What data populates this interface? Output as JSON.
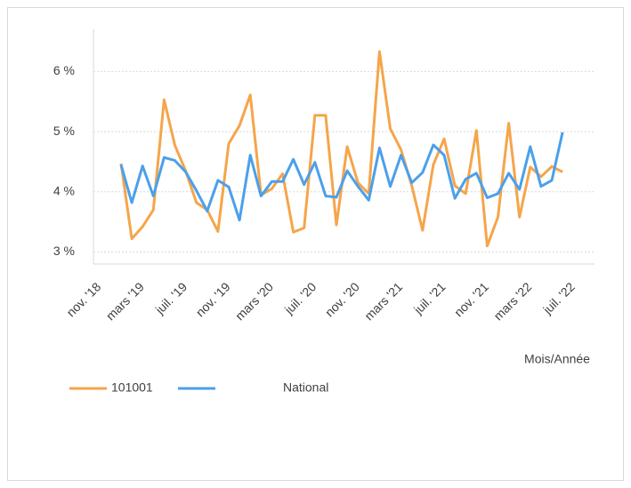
{
  "chart_data": {
    "type": "line",
    "x_axis_title": "Mois/Année",
    "categories": [
      "nov. '18",
      null,
      null,
      null,
      "mars '19",
      null,
      null,
      null,
      "juil. '19",
      null,
      null,
      null,
      "nov. '19",
      null,
      null,
      null,
      "mars '20",
      null,
      null,
      null,
      "juil. '20",
      null,
      null,
      null,
      "nov. '20",
      null,
      null,
      null,
      "mars '21",
      null,
      null,
      null,
      "juil. '21",
      null,
      null,
      null,
      "nov. '21",
      null,
      null,
      null,
      "mars '22",
      null,
      null,
      null,
      "juil. '22"
    ],
    "series": [
      {
        "name": "101001",
        "color": "#f5a54a",
        "values": [
          null,
          null,
          null,
          4.47,
          3.22,
          3.42,
          3.7,
          5.53,
          4.77,
          4.35,
          3.82,
          3.7,
          3.34,
          4.8,
          5.1,
          5.61,
          3.95,
          4.05,
          4.3,
          3.33,
          3.4,
          5.27,
          5.27,
          3.45,
          4.75,
          4.15,
          3.97,
          6.33,
          5.05,
          4.7,
          4.1,
          3.36,
          4.45,
          4.88,
          4.1,
          3.97,
          5.02,
          3.1,
          3.58,
          5.14,
          3.58,
          4.41,
          4.25,
          4.42,
          4.33
        ]
      },
      {
        "name": "National",
        "color": "#4ba0ea",
        "values": [
          null,
          null,
          null,
          4.45,
          3.82,
          4.43,
          3.93,
          4.57,
          4.52,
          4.33,
          4.02,
          3.68,
          4.19,
          4.08,
          3.53,
          4.61,
          3.93,
          4.17,
          4.17,
          4.54,
          4.12,
          4.49,
          3.93,
          3.91,
          4.35,
          4.09,
          3.86,
          4.73,
          4.09,
          4.61,
          4.15,
          4.32,
          4.78,
          4.61,
          3.89,
          4.21,
          4.31,
          3.9,
          3.97,
          4.31,
          4.04,
          4.75,
          4.09,
          4.19,
          4.99
        ]
      }
    ],
    "ylim": [
      2.8,
      6.7
    ],
    "yticks": [
      {
        "value": 3,
        "label": "3 %"
      },
      {
        "value": 4,
        "label": "4 %"
      },
      {
        "value": 5,
        "label": "5 %"
      },
      {
        "value": 6,
        "label": "6 %"
      }
    ],
    "grid": true
  }
}
